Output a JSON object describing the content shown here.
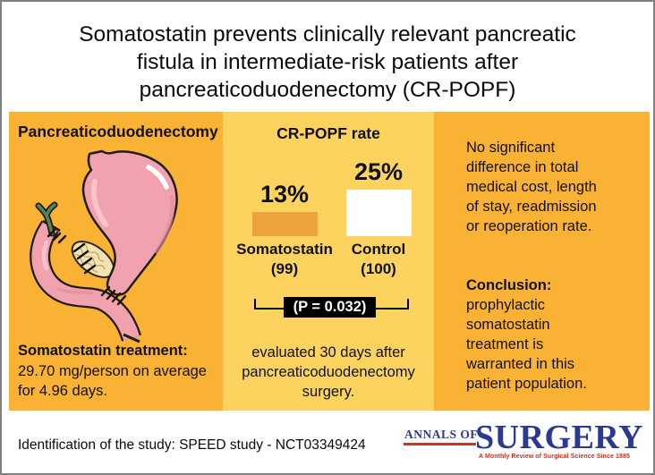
{
  "title_lines": [
    "Somatostatin prevents clinically relevant pancreatic",
    "fistula in intermediate-risk patients after",
    "pancreaticoduodenectomy (CR-POPF)"
  ],
  "colors": {
    "panel_orange": "#F9B233",
    "panel_yellow": "#FBD35E",
    "bar_somatostatin": "#EDA33D",
    "bar_control": "#FFFFFF",
    "logo_blue": "#2B3990",
    "logo_red": "#C2392B"
  },
  "left_panel": {
    "header": "Pancreaticoduodenectomy",
    "illustration": "stomach-after-pancreaticoduodenectomy",
    "treatment_label": "Somatostatin treatment:",
    "treatment_lines": [
      "29.70 mg/person on average",
      "for 4.96 days."
    ]
  },
  "middle_panel": {
    "header": "CR-POPF rate",
    "bars": [
      {
        "value_label": "13%",
        "name": "Somatostatin",
        "n": "(99)"
      },
      {
        "value_label": "25%",
        "name": "Control",
        "n": "(100)"
      }
    ],
    "p_value": "(P = 0.032)",
    "footnote_lines": [
      "evaluated 30 days after",
      "pancreaticoduodenectomy",
      "surgery."
    ]
  },
  "chart_data": {
    "type": "bar",
    "title": "CR-POPF rate",
    "categories": [
      "Somatostatin (99)",
      "Control (100)"
    ],
    "values": [
      13,
      25
    ],
    "unit": "%",
    "bar_colors": [
      "#EDA33D",
      "#FFFFFF"
    ],
    "annotation": "(P = 0.032)",
    "ylim": [
      0,
      26
    ],
    "legend": "none",
    "grid": "off"
  },
  "right_panel": {
    "paragraph_lines": [
      "No significant",
      "difference in total",
      "medical cost, length",
      "of stay, readmission",
      "or reoperation rate."
    ],
    "conclusion_label": "Conclusion:",
    "conclusion_lines": [
      "prophylactic",
      "somatostatin",
      "treatment is",
      "warranted in this",
      "patient population."
    ]
  },
  "footer": {
    "study_id": "Identification of the study: SPEED study - NCT03349424",
    "logo_top": "ANNALS OF",
    "logo_main": "SURGERY",
    "logo_tagline": "A Monthly Review of Surgical Science Since 1885"
  }
}
